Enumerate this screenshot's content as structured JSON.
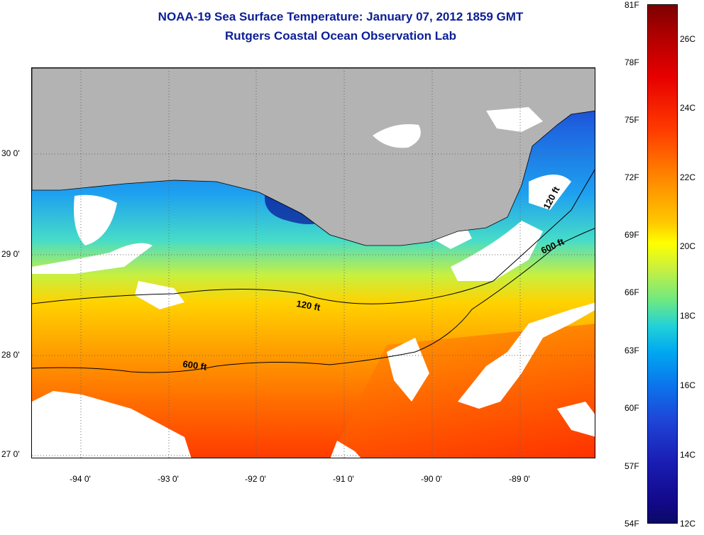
{
  "header": {
    "title": "NOAA-19 Sea Surface Temperature:  January 07, 2012 1859 GMT",
    "subtitle": "Rutgers Coastal Ocean Observation Lab"
  },
  "map": {
    "lat_labels": [
      "30 0'",
      "29 0'",
      "28 0'",
      "27 0'"
    ],
    "lon_labels": [
      "-94 0'",
      "-93 0'",
      "-92 0'",
      "-91 0'",
      "-90 0'",
      "-89 0'"
    ],
    "lat_range": [
      26.98,
      30.86
    ],
    "lon_range": [
      -94.55,
      -88.0
    ],
    "contour_labels": {
      "shelf_120_gulf": "120 ft",
      "shelf_120_east": "120 ft",
      "shelf_600_gulf": "600 ft",
      "shelf_600_east": "600 ft"
    },
    "colors": {
      "land": "#b3b3b3",
      "no_data": "#ffffff",
      "coldest": "#1a1eb4",
      "warmest": "#ff3a00"
    }
  },
  "colorbar": {
    "fahrenheit": [
      "81F",
      "78F",
      "75F",
      "72F",
      "69F",
      "66F",
      "63F",
      "60F",
      "57F",
      "54F"
    ],
    "celsius": [
      "26C",
      "24C",
      "22C",
      "20C",
      "18C",
      "16C",
      "14C",
      "12C"
    ],
    "range_f": [
      54,
      81
    ],
    "range_c": [
      12,
      27.2
    ]
  }
}
